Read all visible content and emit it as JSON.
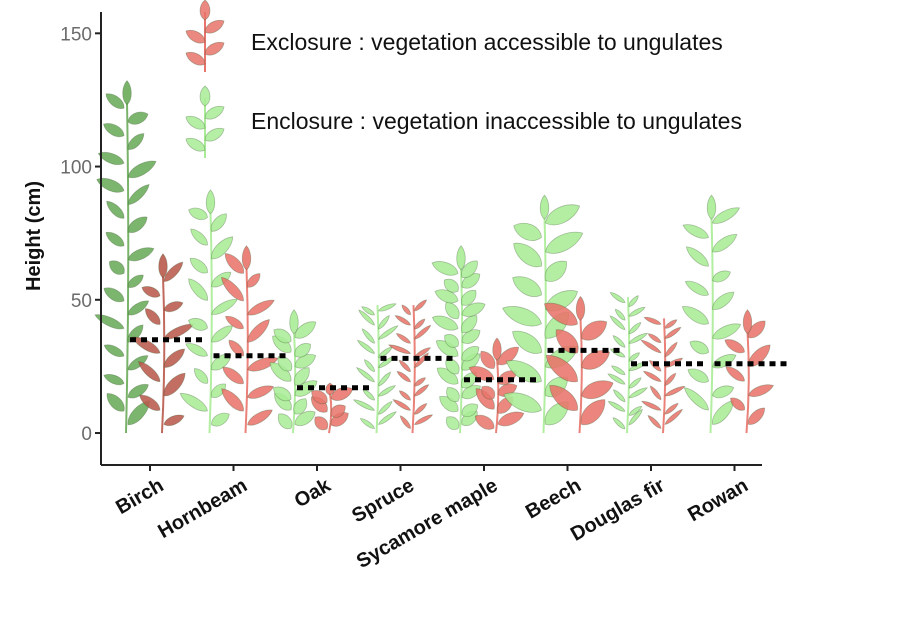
{
  "chart_data": {
    "type": "bar",
    "title": "",
    "xlabel": "",
    "ylabel": "Height (cm)",
    "ylim": [
      -12,
      158
    ],
    "yticks": [
      0,
      50,
      100,
      150
    ],
    "categories": [
      "Birch",
      "Hornbeam",
      "Oak",
      "Spruce",
      "Sycamore maple",
      "Beech",
      "Douglas fir",
      "Rowan"
    ],
    "series": [
      {
        "name": "Exclosure : vegetation accessible to ungulates",
        "color": "#e8746b",
        "values": [
          35,
          29,
          17,
          28,
          20,
          31,
          26,
          26
        ],
        "plant_heights": [
          59,
          62,
          15,
          48,
          28,
          43,
          43,
          38
        ]
      },
      {
        "name": "Enclosure : vegetation inaccessible to ungulates",
        "color": "#9ee58a",
        "values": [
          35,
          29,
          17,
          28,
          20,
          31,
          26,
          26
        ],
        "plant_heights": [
          124,
          83,
          38,
          48,
          62,
          81,
          51,
          81
        ]
      }
    ],
    "mean_marker": "dotted-line",
    "legend_position": "top",
    "grid": false
  },
  "icons": {
    "legend_exclosure": "red-leaf-icon",
    "legend_enclosure": "green-leaf-icon"
  },
  "colors": {
    "exclosure_leaf": "#e8746b",
    "enclosure_leaf": "#a8ec95",
    "birch_leaf": "#6aab5a",
    "birch_red": "#b95a4c",
    "mean_marker": "#000000"
  }
}
